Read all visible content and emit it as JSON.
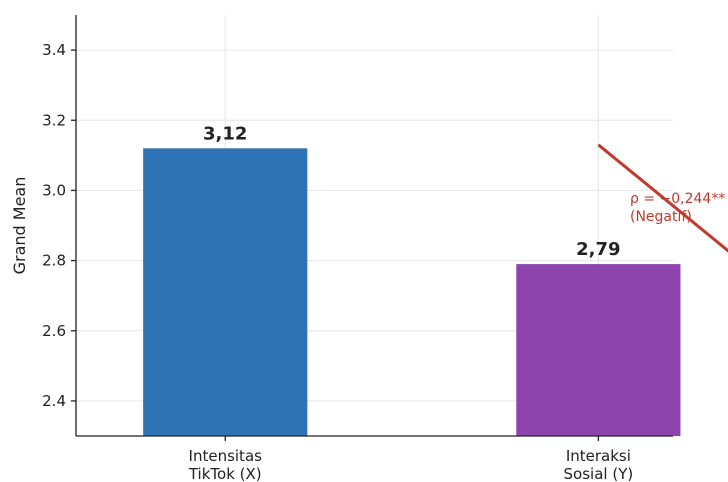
{
  "chart_data": {
    "type": "bar",
    "categories": [
      "Intensitas\nTikTok (X)",
      "Interaksi\nSosial (Y)"
    ],
    "values": [
      3.12,
      2.79
    ],
    "data_labels": [
      "3,12",
      "2,79"
    ],
    "bar_colors": [
      "#2e73b4",
      "#8e44ad"
    ],
    "ylabel": "Grand Mean",
    "ylim": [
      2.3,
      3.5
    ],
    "yticks": [
      2.4,
      2.6,
      2.8,
      3.0,
      3.2,
      3.4
    ],
    "ytick_labels": [
      "2.4",
      "2.6",
      "2.8",
      "3.0",
      "3.2",
      "3.4"
    ],
    "grid": true,
    "annotation": {
      "lines": [
        "ρ = −0,244**",
        "(Negatif)"
      ],
      "color": "#c0392b",
      "arrow_from": [
        1.0,
        3.13
      ],
      "arrow_to": [
        1.38,
        2.8
      ]
    }
  }
}
